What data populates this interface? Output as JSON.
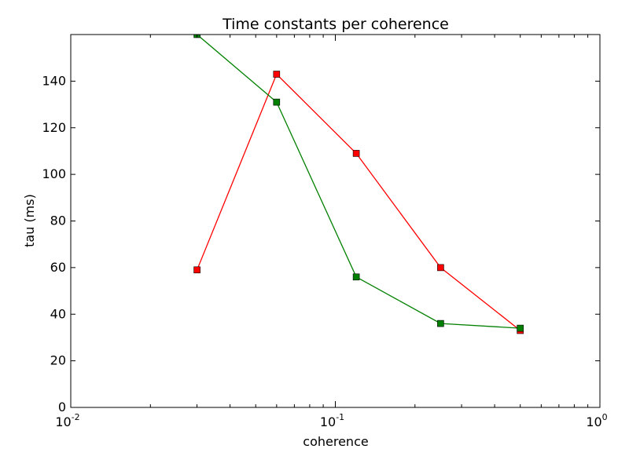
{
  "chart_data": {
    "type": "line",
    "title": "Time constants per coherence",
    "xlabel": "coherence",
    "ylabel": "tau (ms)",
    "xscale": "log",
    "xlim": [
      0.01,
      1
    ],
    "ylim": [
      0,
      160
    ],
    "x_ticks": [
      {
        "value": 0.01,
        "base": "10",
        "exp": "-2"
      },
      {
        "value": 0.1,
        "base": "10",
        "exp": "-1"
      },
      {
        "value": 1,
        "base": "10",
        "exp": "0"
      }
    ],
    "y_ticks": [
      "0",
      "20",
      "40",
      "60",
      "80",
      "100",
      "120",
      "140"
    ],
    "grid": false,
    "legend": "none",
    "series": [
      {
        "color": "#ff0000",
        "marker": "square",
        "x": [
          0.03,
          0.06,
          0.12,
          0.25,
          0.5
        ],
        "y": [
          59,
          143,
          109,
          60,
          33
        ]
      },
      {
        "color": "#008000",
        "marker": "square",
        "x": [
          0.03,
          0.06,
          0.12,
          0.25,
          0.5
        ],
        "y": [
          160,
          131,
          56,
          36,
          34
        ]
      }
    ]
  }
}
